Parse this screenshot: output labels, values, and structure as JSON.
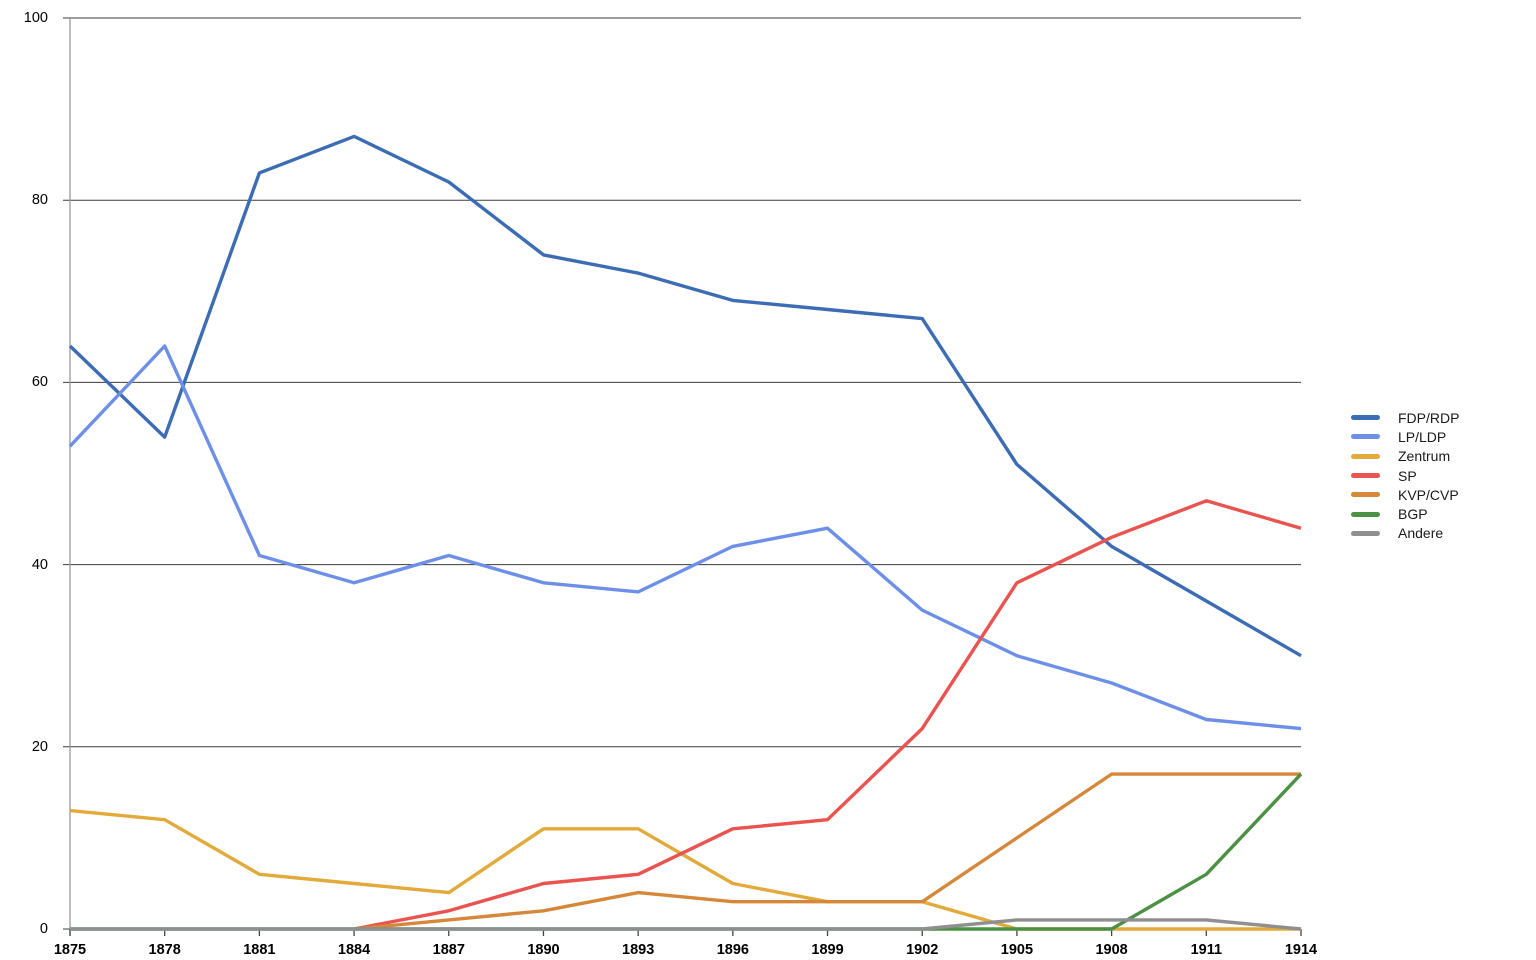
{
  "chart_data": {
    "type": "line",
    "title": "",
    "xlabel": "",
    "ylabel": "",
    "categories": [
      "1875",
      "1878",
      "1881",
      "1884",
      "1887",
      "1890",
      "1893",
      "1896",
      "1899",
      "1902",
      "1905",
      "1908",
      "1911",
      "1914"
    ],
    "y_tick_labels": [
      "0",
      "20",
      "40",
      "60",
      "80",
      "100"
    ],
    "y_ticks": [
      0,
      20,
      40,
      60,
      80,
      100
    ],
    "ylim": [
      0,
      100
    ],
    "grid": true,
    "legend_position": "right",
    "series": [
      {
        "name": "FDP/RDP",
        "color": "#3c6cb4",
        "values": [
          64,
          54,
          83,
          87,
          82,
          74,
          72,
          69,
          68,
          67,
          51,
          42,
          36,
          30
        ]
      },
      {
        "name": "LP/LDP",
        "color": "#6d8fe8",
        "values": [
          53,
          64,
          41,
          38,
          41,
          38,
          37,
          42,
          44,
          35,
          30,
          27,
          23,
          22
        ]
      },
      {
        "name": "Zentrum",
        "color": "#e2aa3a",
        "values": [
          13,
          12,
          6,
          5,
          4,
          11,
          11,
          5,
          3,
          3,
          0,
          0,
          0,
          0
        ]
      },
      {
        "name": "SP",
        "color": "#e95350",
        "values": [
          null,
          null,
          null,
          0,
          2,
          5,
          6,
          11,
          12,
          22,
          38,
          43,
          47,
          44
        ]
      },
      {
        "name": "KVP/CVP",
        "color": "#d6883a",
        "values": [
          null,
          null,
          null,
          0,
          1,
          2,
          4,
          3,
          3,
          3,
          10,
          17,
          17,
          17
        ]
      },
      {
        "name": "BGP",
        "color": "#4c9044",
        "values": [
          0,
          0,
          0,
          0,
          0,
          0,
          0,
          0,
          0,
          0,
          0,
          0,
          6,
          17
        ]
      },
      {
        "name": "Andere",
        "color": "#8f8f8f",
        "values": [
          0,
          0,
          0,
          0,
          0,
          0,
          0,
          0,
          0,
          0,
          1,
          1,
          1,
          0
        ]
      }
    ]
  },
  "colors": {
    "background": "#ffffff",
    "gridline": "#3d3d3d",
    "axis_line": "#999999",
    "tick": "#444444",
    "label": "#000000"
  }
}
